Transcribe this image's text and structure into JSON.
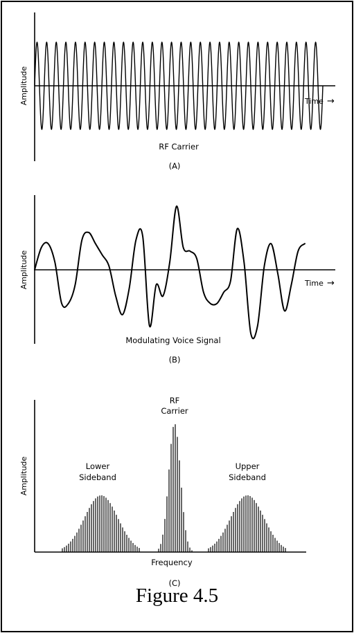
{
  "caption": "Figure 4.5",
  "panel_a": {
    "ylabel": "Amplitude",
    "xlabel": "Time",
    "arrow": "→",
    "label": "RF Carrier",
    "tag": "(A)",
    "cycles": 30
  },
  "panel_b": {
    "ylabel": "Amplitude",
    "xlabel": "Time",
    "arrow": "→",
    "label": "Modulating Voice Signal",
    "tag": "(B)",
    "signal": [
      0.0,
      0.3,
      0.35,
      0.1,
      -0.45,
      -0.45,
      -0.2,
      0.4,
      0.5,
      0.35,
      0.2,
      0.05,
      -0.35,
      -0.6,
      -0.25,
      0.4,
      0.45,
      -0.75,
      -0.2,
      -0.35,
      0.1,
      0.85,
      0.3,
      0.25,
      0.15,
      -0.3,
      -0.45,
      -0.45,
      -0.3,
      -0.15,
      0.55,
      0.1,
      -0.85,
      -0.75,
      0.05,
      0.35,
      -0.05,
      -0.55,
      -0.2,
      0.25,
      0.35
    ]
  },
  "panel_c": {
    "ylabel": "Amplitude",
    "xlabel": "Frequency",
    "tag": "(C)",
    "lower_label": [
      "Lower",
      "Sideband"
    ],
    "carrier_label": [
      "RF",
      "Carrier"
    ],
    "upper_label": [
      "Upper",
      "Sideband"
    ],
    "sideband_peak": 0.45,
    "carrier_peak": 1.0
  }
}
